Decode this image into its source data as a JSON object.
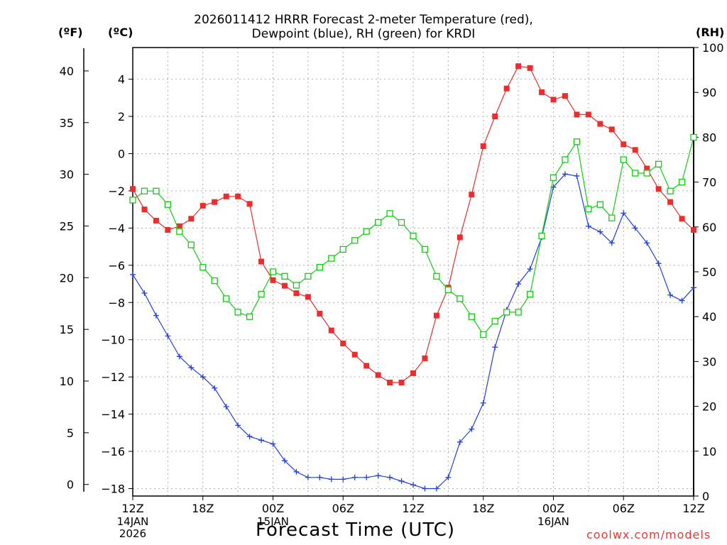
{
  "title": {
    "line1": "2026011412 HRRR Forecast 2-meter Temperature (red),",
    "line2": "Dewpoint (blue), RH (green) for KRDI"
  },
  "unit_labels": {
    "fahrenheit": "(ºF)",
    "celsius": "(ºC)",
    "rh": "(RH)"
  },
  "credit": "coolwx.com/models",
  "colors": {
    "temperature": "#ee2c2c",
    "dewpoint": "#2040e0",
    "rh": "#10d010",
    "grid": "#b0b0b0",
    "credit": "#e53935"
  },
  "chart_data": {
    "type": "line",
    "title": "2026011412 HRRR Forecast 2-meter Temperature (red), Dewpoint (blue), RH (green) for KRDI",
    "xlabel": "Forecast Time (UTC)",
    "x_unit": "forecast hour from 2026-01-14 12Z",
    "x_range": [
      0,
      48
    ],
    "x_ticks": [
      {
        "hour": 0,
        "label": "12Z",
        "sub": [
          "14JAN",
          "2026"
        ]
      },
      {
        "hour": 6,
        "label": "18Z",
        "sub": []
      },
      {
        "hour": 12,
        "label": "00Z",
        "sub": [
          "15JAN"
        ]
      },
      {
        "hour": 18,
        "label": "06Z",
        "sub": []
      },
      {
        "hour": 24,
        "label": "12Z",
        "sub": []
      },
      {
        "hour": 30,
        "label": "18Z",
        "sub": []
      },
      {
        "hour": 36,
        "label": "00Z",
        "sub": [
          "16JAN"
        ]
      },
      {
        "hour": 42,
        "label": "06Z",
        "sub": []
      },
      {
        "hour": 48,
        "label": "12Z",
        "sub": []
      }
    ],
    "y_left_celsius": {
      "range": [
        -18.4,
        5.7
      ],
      "ticks": [
        4,
        2,
        0,
        -2,
        -4,
        -6,
        -8,
        -10,
        -12,
        -14,
        -16,
        -18
      ]
    },
    "y_left_fahrenheit": {
      "ticks": [
        40,
        35,
        30,
        25,
        20,
        15,
        10,
        5,
        0
      ]
    },
    "y_right_rh": {
      "range": [
        0,
        100
      ],
      "ticks": [
        100,
        90,
        80,
        70,
        60,
        50,
        40,
        30,
        20,
        10,
        0
      ]
    },
    "grid": true,
    "series": [
      {
        "name": "Temperature",
        "unit": "°C",
        "marker": "filled-square",
        "values": [
          -1.9,
          -3.0,
          -3.6,
          -4.1,
          -3.9,
          -3.5,
          -2.8,
          -2.6,
          -2.3,
          -2.3,
          -2.7,
          -5.8,
          -6.8,
          -7.1,
          -7.5,
          -7.7,
          -8.6,
          -9.5,
          -10.2,
          -10.8,
          -11.4,
          -11.9,
          -12.3,
          -12.3,
          -11.8,
          -11.0,
          -8.7,
          -7.2,
          -4.5,
          -2.2,
          0.4,
          2.0,
          3.5,
          4.7,
          4.6,
          3.3,
          2.9,
          3.1,
          2.1,
          2.1,
          1.6,
          1.3,
          0.5,
          0.2,
          -0.8,
          -1.9,
          -2.6,
          -3.5,
          -4.1
        ]
      },
      {
        "name": "Dewpoint",
        "unit": "°C",
        "marker": "plus",
        "values": [
          -6.5,
          -7.5,
          -8.7,
          -9.8,
          -10.9,
          -11.5,
          -12.0,
          -12.6,
          -13.6,
          -14.6,
          -15.2,
          -15.4,
          -15.6,
          -16.5,
          -17.1,
          -17.4,
          -17.4,
          -17.5,
          -17.5,
          -17.4,
          -17.4,
          -17.3,
          -17.4,
          -17.6,
          -17.8,
          -18.0,
          -18.0,
          -17.4,
          -15.5,
          -14.8,
          -13.4,
          -10.4,
          -8.4,
          -7.0,
          -6.2,
          -4.5,
          -1.8,
          -1.1,
          -1.2,
          -3.9,
          -4.2,
          -4.8,
          -3.2,
          -4.0,
          -4.8,
          -5.9,
          -7.6,
          -7.9,
          -7.2
        ]
      },
      {
        "name": "RH",
        "unit": "%",
        "marker": "open-square",
        "values": [
          66,
          68,
          68,
          65,
          59,
          56,
          51,
          48,
          44,
          41,
          40,
          45,
          50,
          49,
          47,
          49,
          51,
          53,
          55,
          57,
          59,
          61,
          63,
          61,
          58,
          55,
          49,
          46,
          44,
          40,
          36,
          39,
          41,
          41,
          45,
          58,
          71,
          75,
          79,
          64,
          65,
          62,
          75,
          72,
          72,
          74,
          68,
          70,
          80
        ]
      }
    ]
  }
}
